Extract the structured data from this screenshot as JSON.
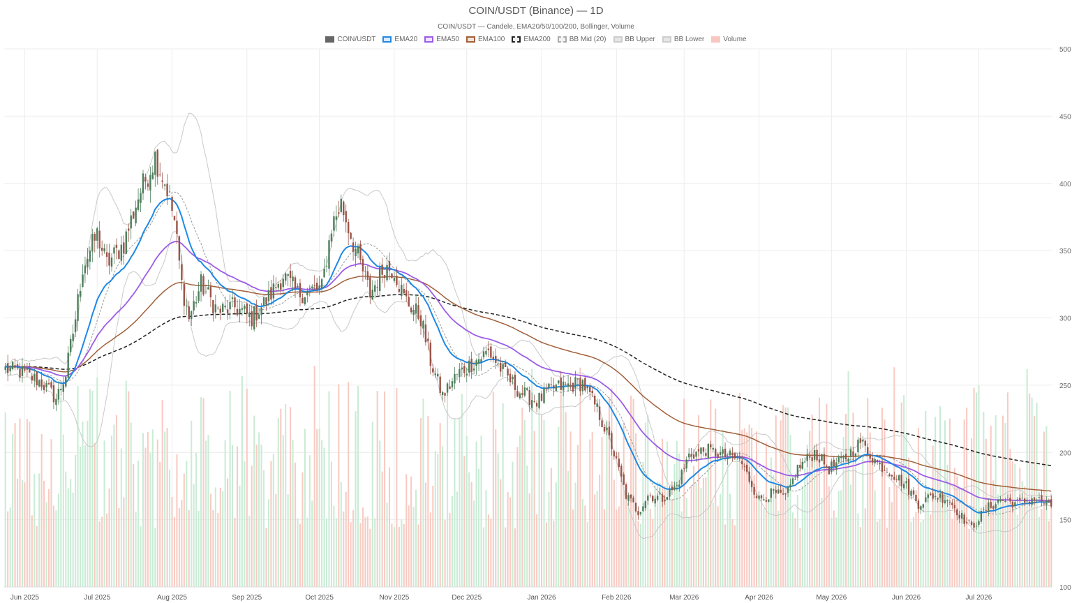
{
  "page": {
    "title": "COIN/USDT (Binance) — 1D",
    "subtitle": "COIN/USDT — Candele, EMA20/50/100/200, Bollinger, Volume"
  },
  "legend": [
    {
      "label": "COIN/USDT",
      "fill": "#666666",
      "stroke": "#666666",
      "dash": false
    },
    {
      "label": "EMA20",
      "fill": "#dbeafe",
      "stroke": "#1e88e5",
      "dash": false
    },
    {
      "label": "EMA50",
      "fill": "#efe3ff",
      "stroke": "#9c5ce6",
      "dash": false
    },
    {
      "label": "EMA100",
      "fill": "#f2e3d8",
      "stroke": "#a0603a",
      "dash": false
    },
    {
      "label": "EMA200",
      "fill": "#eeeeee",
      "stroke": "#222222",
      "dash": true
    },
    {
      "label": "BB Mid (20)",
      "fill": "#f2f2f2",
      "stroke": "#aaaaaa",
      "dash": true
    },
    {
      "label": "BB Upper",
      "fill": "#e6e6e6",
      "stroke": "#cccccc",
      "dash": false
    },
    {
      "label": "BB Lower",
      "fill": "#e6e6e6",
      "stroke": "#cccccc",
      "dash": false
    },
    {
      "label": "Volume",
      "fill": "#f8c8c0",
      "stroke": "#f8c8c0",
      "dash": false
    }
  ],
  "chart_data": {
    "type": "candlestick",
    "x_start": "2025-05-24",
    "x_end": "2026-07-31",
    "x_tick_labels": [
      "Jun 2025",
      "Jul 2025",
      "Aug 2025",
      "Sep 2025",
      "Oct 2025",
      "Nov 2025",
      "Dec 2025",
      "Jan 2026",
      "Feb 2026",
      "Mar 2026",
      "Apr 2026",
      "May 2026",
      "Jun 2026",
      "Jul 2026"
    ],
    "x_ticks": [
      "2025-06-01",
      "2025-07-01",
      "2025-08-01",
      "2025-09-01",
      "2025-10-01",
      "2025-11-01",
      "2025-12-01",
      "2026-01-01",
      "2026-02-01",
      "2026-03-01",
      "2026-04-01",
      "2026-05-01",
      "2026-06-01",
      "2026-07-01"
    ],
    "y_ticks": [
      100,
      150,
      200,
      250,
      300,
      350,
      400,
      450,
      500
    ],
    "ylim": [
      100,
      500
    ],
    "y_axis_position": "right",
    "grid": true,
    "colors": {
      "up": "#4e7f5c",
      "down": "#9a5448",
      "vol_up": "#c9ecd5",
      "vol_down": "#f8cbc3"
    },
    "price_anchors": [
      [
        "2025-05-24",
        262
      ],
      [
        "2025-05-30",
        260
      ],
      [
        "2025-06-08",
        252
      ],
      [
        "2025-06-14",
        240
      ],
      [
        "2025-06-18",
        258
      ],
      [
        "2025-06-22",
        300
      ],
      [
        "2025-06-25",
        338
      ],
      [
        "2025-07-01",
        362
      ],
      [
        "2025-07-05",
        340
      ],
      [
        "2025-07-12",
        355
      ],
      [
        "2025-07-18",
        390
      ],
      [
        "2025-07-25",
        420
      ],
      [
        "2025-07-30",
        396
      ],
      [
        "2025-08-02",
        372
      ],
      [
        "2025-08-05",
        325
      ],
      [
        "2025-08-08",
        300
      ],
      [
        "2025-08-13",
        325
      ],
      [
        "2025-08-20",
        305
      ],
      [
        "2025-08-27",
        308
      ],
      [
        "2025-09-03",
        300
      ],
      [
        "2025-09-10",
        315
      ],
      [
        "2025-09-16",
        332
      ],
      [
        "2025-09-22",
        318
      ],
      [
        "2025-10-02",
        322
      ],
      [
        "2025-10-06",
        368
      ],
      [
        "2025-10-10",
        385
      ],
      [
        "2025-10-15",
        356
      ],
      [
        "2025-10-22",
        318
      ],
      [
        "2025-10-28",
        338
      ],
      [
        "2025-11-01",
        336
      ],
      [
        "2025-11-05",
        315
      ],
      [
        "2025-11-12",
        300
      ],
      [
        "2025-11-16",
        268
      ],
      [
        "2025-11-21",
        242
      ],
      [
        "2025-11-27",
        258
      ],
      [
        "2025-12-03",
        266
      ],
      [
        "2025-12-10",
        275
      ],
      [
        "2025-12-16",
        260
      ],
      [
        "2025-12-23",
        245
      ],
      [
        "2025-12-30",
        238
      ],
      [
        "2026-01-06",
        248
      ],
      [
        "2026-01-13",
        250
      ],
      [
        "2026-01-18",
        252
      ],
      [
        "2026-01-24",
        232
      ],
      [
        "2026-01-30",
        205
      ],
      [
        "2026-02-05",
        168
      ],
      [
        "2026-02-10",
        156
      ],
      [
        "2026-02-14",
        168
      ],
      [
        "2026-02-20",
        166
      ],
      [
        "2026-02-26",
        175
      ],
      [
        "2026-03-03",
        198
      ],
      [
        "2026-03-10",
        202
      ],
      [
        "2026-03-17",
        198
      ],
      [
        "2026-03-24",
        195
      ],
      [
        "2026-04-01",
        165
      ],
      [
        "2026-04-07",
        170
      ],
      [
        "2026-04-12",
        166
      ],
      [
        "2026-04-17",
        188
      ],
      [
        "2026-04-24",
        200
      ],
      [
        "2026-04-30",
        188
      ],
      [
        "2026-05-07",
        196
      ],
      [
        "2026-05-13",
        208
      ],
      [
        "2026-05-20",
        192
      ],
      [
        "2026-05-26",
        185
      ],
      [
        "2026-06-01",
        175
      ],
      [
        "2026-06-06",
        162
      ],
      [
        "2026-06-12",
        168
      ],
      [
        "2026-06-18",
        166
      ],
      [
        "2026-06-24",
        152
      ],
      [
        "2026-06-28",
        144
      ],
      [
        "2026-07-04",
        158
      ],
      [
        "2026-07-10",
        165
      ],
      [
        "2026-07-17",
        162
      ],
      [
        "2026-07-24",
        166
      ],
      [
        "2026-07-31",
        160
      ]
    ]
  }
}
